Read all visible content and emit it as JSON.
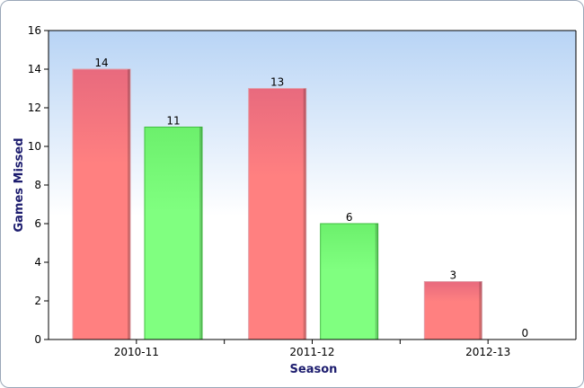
{
  "chart_data": {
    "type": "bar",
    "title": "",
    "xlabel": "Season",
    "ylabel": "Games Missed",
    "categories": [
      "2010-11",
      "2011-12",
      "2012-13"
    ],
    "series": [
      {
        "values": [
          14,
          13,
          3
        ],
        "color": "#ff8080"
      },
      {
        "values": [
          11,
          6,
          0
        ],
        "color": "#80ff80"
      }
    ],
    "ylim": [
      0,
      16
    ],
    "yticks": [
      "0",
      "2",
      "4",
      "6",
      "8",
      "10",
      "12",
      "14",
      "16"
    ],
    "grid": false,
    "legend": "none",
    "colors": {
      "plot_background_top": "#b8d4f5",
      "plot_background_bottom": "#ffffff",
      "axis_title": "#1c1c6e"
    }
  }
}
